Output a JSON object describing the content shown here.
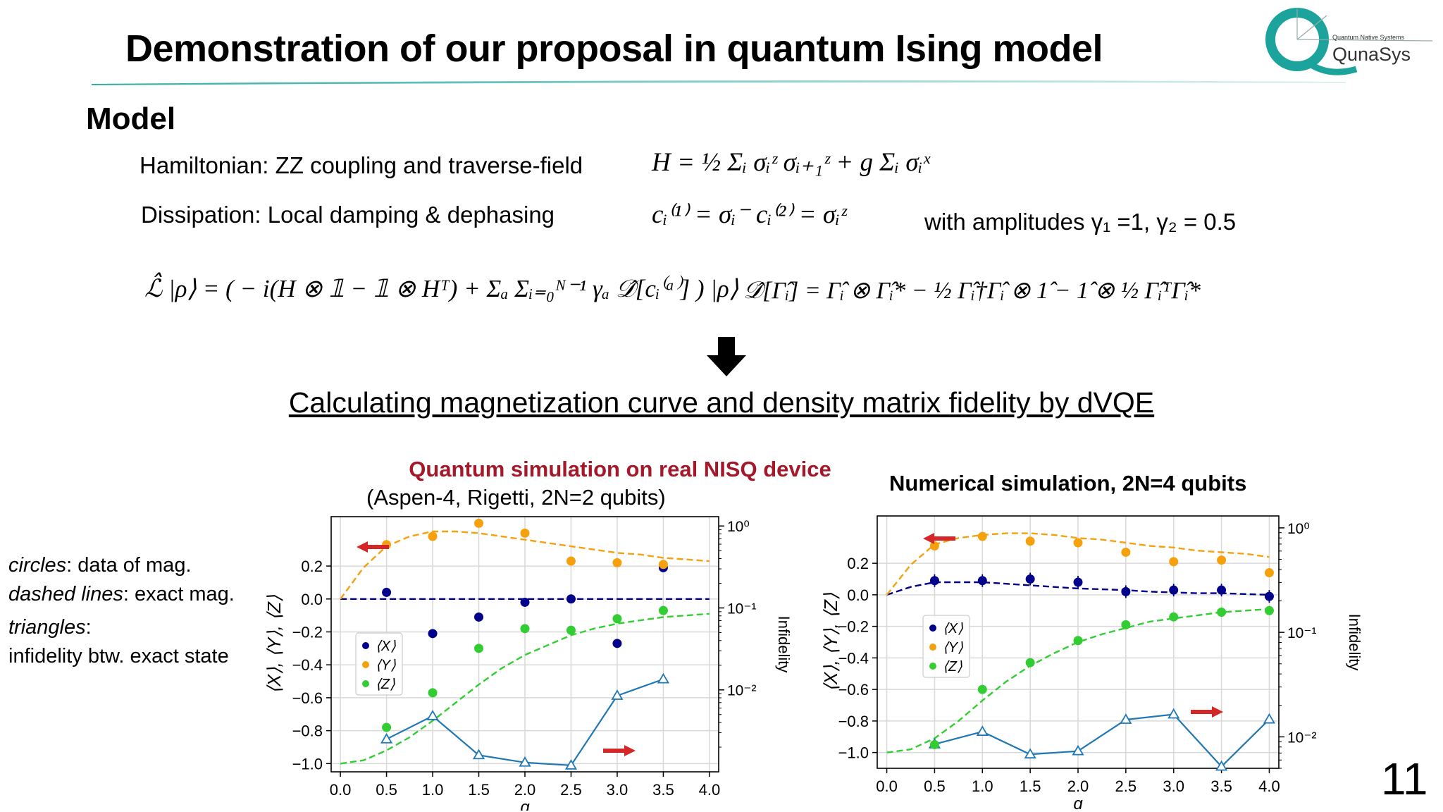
{
  "title": "Demonstration of our proposal in quantum Ising model",
  "logo": {
    "tagline": "Quantum Native Systems",
    "name": "QunaSys"
  },
  "model_heading": "Model",
  "hamiltonian_label": "Hamiltonian: ZZ coupling and traverse-field",
  "hamiltonian_eq": "H = ½ Σᵢ σᵢᶻ σᵢ₊₁ᶻ + g Σᵢ σᵢˣ",
  "dissipation_label": "Dissipation: Local damping & dephasing",
  "dissipation_eq": "cᵢ⁽¹⁾ = σᵢ⁻    cᵢ⁽²⁾ = σᵢᶻ",
  "amplitudes": "with amplitudes γ₁ =1,  γ₂ = 0.5",
  "lindblad_eq": "ℒ̂ |ρ⟩ = ( − i(H ⊗ 𝟙 − 𝟙 ⊗ Hᵀ)  + Σₐ Σᵢ₌₀ᴺ⁻¹ γₐ 𝒟̂[cᵢ⁽ᵃ⁾] ) |ρ⟩",
  "dissipator_eq": "𝒟̂[Γ̂ᵢ] = Γ̂ᵢ ⊗ Γ̂ᵢ* − ½ Γ̂ᵢ†Γ̂ᵢ ⊗ 1̂ − 1̂ ⊗ ½ Γ̂ᵢᵀΓ̂ᵢ*",
  "subtitle": "Calculating magnetization curve and density matrix fidelity by dVQE",
  "left_panel": {
    "title_red": "Quantum simulation on real NISQ device",
    "title_sub": "(Aspen-4, Rigetti, 2N=2 qubits)"
  },
  "right_panel": {
    "title": "Numerical simulation, 2N=4 qubits"
  },
  "side_legend": {
    "circles_word": "circles",
    "circles_text": ": data of mag.",
    "dashed_word": "dashed lines",
    "dashed_text": ": exact mag.",
    "triangles_word": "triangles",
    "triangles_text": ":",
    "infidelity_text": "infidelity btw. exact state"
  },
  "page_number": "11",
  "colors": {
    "X": "#00008b",
    "Y": "#f5a10e",
    "Z": "#32cd32",
    "infid": "#1f77b4",
    "arrow": "#d62728",
    "teal": "#1ba39c"
  },
  "chart_data": [
    {
      "type": "scatter",
      "x": [
        0.5,
        1.0,
        1.5,
        2.0,
        2.5,
        3.0,
        3.5
      ],
      "series": [
        {
          "name": "⟨X⟩",
          "values": [
            0.04,
            -0.21,
            -0.11,
            -0.02,
            0.0,
            -0.27,
            0.19
          ]
        },
        {
          "name": "⟨Y⟩",
          "values": [
            0.33,
            0.38,
            0.46,
            0.4,
            0.23,
            0.22,
            0.21
          ]
        },
        {
          "name": "⟨Z⟩",
          "values": [
            -0.78,
            -0.57,
            -0.3,
            -0.18,
            -0.19,
            -0.12,
            -0.07
          ]
        }
      ],
      "exact_curves": {
        "x": [
          0.0,
          0.25,
          0.5,
          0.75,
          1.0,
          1.25,
          1.5,
          1.75,
          2.0,
          2.25,
          2.5,
          2.75,
          3.0,
          3.25,
          3.5,
          3.75,
          4.0
        ],
        "X": [
          0,
          0,
          0,
          0,
          0,
          0,
          0,
          0,
          0,
          0,
          0,
          0,
          0,
          0,
          0,
          0,
          0
        ],
        "Y": [
          0.0,
          0.19,
          0.32,
          0.38,
          0.41,
          0.41,
          0.4,
          0.38,
          0.36,
          0.34,
          0.32,
          0.3,
          0.28,
          0.27,
          0.25,
          0.24,
          0.23
        ],
        "Z": [
          -1.0,
          -0.98,
          -0.92,
          -0.84,
          -0.74,
          -0.63,
          -0.52,
          -0.42,
          -0.34,
          -0.28,
          -0.22,
          -0.18,
          -0.15,
          -0.13,
          -0.11,
          -0.1,
          -0.09
        ]
      },
      "infidelity": {
        "x": [
          0.5,
          1.0,
          1.5,
          2.0,
          2.5,
          3.0,
          3.5
        ],
        "values": [
          0.0025,
          0.0048,
          0.0016,
          0.0013,
          0.0012,
          0.0085,
          0.0135
        ]
      },
      "xlabel": "g",
      "ylabel": "⟨X⟩, ⟨Y⟩, ⟨Z⟩",
      "y2label": "Infidelity",
      "xlim": [
        -0.1,
        4.1
      ],
      "ylim": [
        -1.05,
        0.5
      ],
      "y2lim": [
        0.001,
        1.3
      ],
      "xticks": [
        "0.0",
        "0.5",
        "1.0",
        "1.5",
        "2.0",
        "2.5",
        "3.0",
        "3.5",
        "4.0"
      ],
      "yticks": [
        0.2,
        0.0,
        -0.2,
        -0.4,
        -0.6,
        -0.8,
        -1.0
      ],
      "yticklabels": [
        "0.2",
        "0.0",
        "−0.2",
        "−0.4",
        "−0.6",
        "−0.8",
        "−1.0"
      ],
      "y2ticks": [
        1,
        0.1,
        0.01
      ],
      "y2ticklabels": [
        "10⁰",
        "10⁻¹",
        "10⁻²"
      ],
      "legend": "center-left",
      "grid": true
    },
    {
      "type": "scatter",
      "x": [
        0.5,
        1.0,
        1.5,
        2.0,
        2.5,
        3.0,
        3.5,
        4.0
      ],
      "series": [
        {
          "name": "⟨X⟩",
          "values": [
            0.09,
            0.09,
            0.1,
            0.08,
            0.02,
            0.03,
            0.03,
            -0.01
          ]
        },
        {
          "name": "⟨Y⟩",
          "values": [
            0.31,
            0.37,
            0.34,
            0.33,
            0.27,
            0.21,
            0.22,
            0.14
          ]
        },
        {
          "name": "⟨Z⟩",
          "values": [
            -0.95,
            -0.6,
            -0.43,
            -0.29,
            -0.19,
            -0.14,
            -0.11,
            -0.1
          ]
        }
      ],
      "exact_curves": {
        "x": [
          0.0,
          0.25,
          0.5,
          0.75,
          1.0,
          1.25,
          1.5,
          1.75,
          2.0,
          2.25,
          2.5,
          2.75,
          3.0,
          3.25,
          3.5,
          3.75,
          4.0
        ],
        "X": [
          0.0,
          0.05,
          0.08,
          0.08,
          0.08,
          0.07,
          0.06,
          0.05,
          0.04,
          0.035,
          0.03,
          0.02,
          0.015,
          0.01,
          0.01,
          0.005,
          0.0
        ],
        "Y": [
          0.0,
          0.19,
          0.32,
          0.36,
          0.38,
          0.39,
          0.39,
          0.38,
          0.36,
          0.35,
          0.33,
          0.31,
          0.3,
          0.28,
          0.27,
          0.26,
          0.24
        ],
        "Z": [
          -1.0,
          -0.98,
          -0.91,
          -0.8,
          -0.67,
          -0.55,
          -0.45,
          -0.37,
          -0.3,
          -0.25,
          -0.21,
          -0.17,
          -0.15,
          -0.13,
          -0.11,
          -0.1,
          -0.09
        ]
      },
      "infidelity": {
        "x": [
          0.5,
          1.0,
          1.5,
          2.0,
          2.5,
          3.0,
          3.5,
          4.0
        ],
        "values": [
          0.0085,
          0.0112,
          0.0068,
          0.0073,
          0.0146,
          0.0164,
          0.0052,
          0.0147
        ]
      },
      "xlabel": "g",
      "ylabel": "⟨X⟩, ⟨Y⟩, ⟨Z⟩",
      "y2label": "Infidelity",
      "xlim": [
        -0.1,
        4.1
      ],
      "ylim": [
        -1.1,
        0.5
      ],
      "y2lim": [
        0.005,
        1.3
      ],
      "xticks": [
        "0.0",
        "0.5",
        "1.0",
        "1.5",
        "2.0",
        "2.5",
        "3.0",
        "3.5",
        "4.0"
      ],
      "yticks": [
        0.2,
        0.0,
        -0.2,
        -0.4,
        -0.6,
        -0.8,
        -1.0
      ],
      "yticklabels": [
        "0.2",
        "0.0",
        "−0.2",
        "−0.4",
        "−0.6",
        "−0.8",
        "−1.0"
      ],
      "y2ticks": [
        1,
        0.1,
        0.01
      ],
      "y2ticklabels": [
        "10⁰",
        "10⁻¹",
        "10⁻²"
      ],
      "legend": "center-left",
      "grid": true
    }
  ]
}
